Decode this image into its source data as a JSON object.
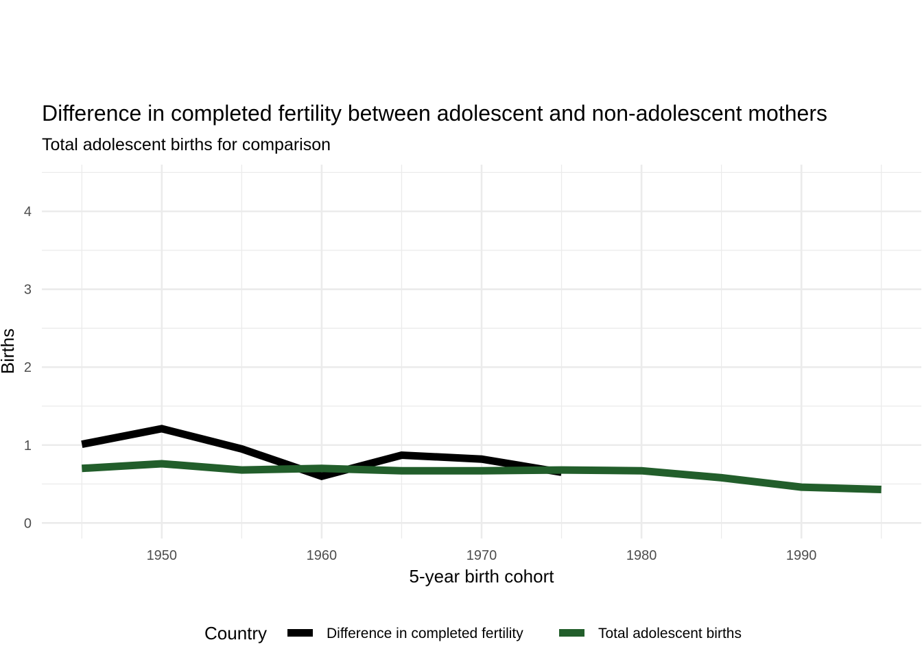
{
  "chart_data": {
    "type": "line",
    "title": "Difference in completed fertility between adolescent and non-adolescent mothers",
    "subtitle": "Total adolescent births for comparison",
    "xlabel": "5-year birth cohort",
    "ylabel": "Births",
    "xlim": [
      1942.5,
      1997.5
    ],
    "ylim": [
      -0.2,
      4.6
    ],
    "x_ticks": [
      1950,
      1960,
      1970,
      1980,
      1990
    ],
    "y_ticks": [
      0,
      1,
      2,
      3,
      4
    ],
    "grid": true,
    "legend": {
      "title": "Country",
      "position": "bottom"
    },
    "series": [
      {
        "name": "Difference in completed fertility",
        "color": "#000000",
        "x": [
          1945,
          1950,
          1955,
          1960,
          1965,
          1970,
          1975
        ],
        "y": [
          1.01,
          1.21,
          0.95,
          0.6,
          0.87,
          0.82,
          0.65
        ]
      },
      {
        "name": "Total adolescent births",
        "color": "#225e2b",
        "x": [
          1945,
          1950,
          1955,
          1960,
          1965,
          1970,
          1975,
          1980,
          1985,
          1990,
          1995
        ],
        "y": [
          0.7,
          0.76,
          0.68,
          0.7,
          0.67,
          0.67,
          0.68,
          0.67,
          0.58,
          0.46,
          0.43
        ]
      }
    ]
  }
}
